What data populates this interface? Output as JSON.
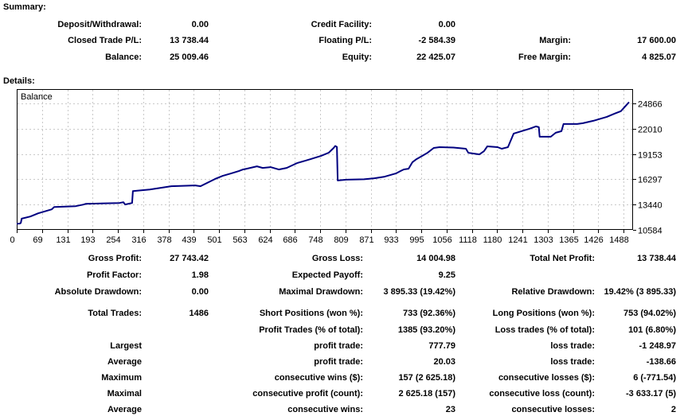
{
  "headings": {
    "summary": "Summary:",
    "details": "Details:"
  },
  "summary": {
    "rows": [
      [
        {
          "label": "Deposit/Withdrawal:",
          "value": "0.00"
        },
        {
          "label": "Credit Facility:",
          "value": "0.00"
        },
        null
      ],
      [
        {
          "label": "Closed Trade P/L:",
          "value": "13 738.44"
        },
        {
          "label": "Floating P/L:",
          "value": "-2 584.39"
        },
        {
          "label": "Margin:",
          "value": "17 600.00"
        }
      ],
      [
        {
          "label": "Balance:",
          "value": "25 009.46"
        },
        {
          "label": "Equity:",
          "value": "22 425.07"
        },
        {
          "label": "Free Margin:",
          "value": "4 825.07"
        }
      ]
    ]
  },
  "details": {
    "rows": [
      [
        {
          "label": "Gross Profit:",
          "value": "27 743.42"
        },
        {
          "label": "Gross Loss:",
          "value": "14 004.98"
        },
        {
          "label": "Total Net Profit:",
          "value": "13 738.44"
        }
      ],
      [
        {
          "label": "Profit Factor:",
          "value": "1.98"
        },
        {
          "label": "Expected Payoff:",
          "value": "9.25"
        },
        null
      ],
      [
        {
          "label": "Absolute Drawdown:",
          "value": "0.00"
        },
        {
          "label": "Maximal Drawdown:",
          "value": "3 895.33 (19.42%)"
        },
        {
          "label": "Relative Drawdown:",
          "value": "19.42% (3 895.33)"
        }
      ],
      [
        {
          "label": "Total Trades:",
          "value": "1486"
        },
        {
          "label": "Short Positions (won %):",
          "value": "733 (92.36%)"
        },
        {
          "label": "Long Positions (won %):",
          "value": "753 (94.02%)"
        }
      ],
      [
        null,
        {
          "label": "Profit Trades (% of total):",
          "value": "1385 (93.20%)"
        },
        {
          "label": "Loss trades (% of total):",
          "value": "101 (6.80%)"
        }
      ],
      [
        {
          "label": "Largest",
          "value": ""
        },
        {
          "label": "profit trade:",
          "value": "777.79"
        },
        {
          "label": "loss trade:",
          "value": "-1 248.97"
        }
      ],
      [
        {
          "label": "Average",
          "value": ""
        },
        {
          "label": "profit trade:",
          "value": "20.03"
        },
        {
          "label": "loss trade:",
          "value": "-138.66"
        }
      ],
      [
        {
          "label": "Maximum",
          "value": ""
        },
        {
          "label": "consecutive wins ($):",
          "value": "157 (2 625.18)"
        },
        {
          "label": "consecutive losses ($):",
          "value": "6 (-771.54)"
        }
      ],
      [
        {
          "label": "Maximal",
          "value": ""
        },
        {
          "label": "consecutive profit (count):",
          "value": "2 625.18 (157)"
        },
        {
          "label": "consecutive loss (count):",
          "value": "-3 633.17 (5)"
        }
      ],
      [
        {
          "label": "Average",
          "value": ""
        },
        {
          "label": "consecutive wins:",
          "value": "23"
        },
        {
          "label": "consecutive losses:",
          "value": "2"
        }
      ]
    ]
  },
  "chart_data": {
    "type": "line",
    "title": "Balance",
    "xlabel": "",
    "ylabel": "",
    "legend_position": "top-left",
    "grid": true,
    "line_color": "#000080",
    "grid_color": "#c9c9c9",
    "x_ticks": [
      0,
      69,
      131,
      193,
      254,
      316,
      378,
      439,
      501,
      563,
      624,
      686,
      748,
      809,
      871,
      933,
      995,
      1056,
      1118,
      1180,
      1241,
      1303,
      1365,
      1426,
      1488
    ],
    "y_ticks": [
      10584,
      13440,
      16297,
      19153,
      22010,
      24866
    ],
    "xlim": [
      0,
      1486
    ],
    "ylim": [
      10584,
      26480
    ],
    "series": [
      {
        "name": "Balance",
        "points": [
          [
            0,
            11271
          ],
          [
            8,
            11300
          ],
          [
            10,
            11380
          ],
          [
            12,
            11850
          ],
          [
            33,
            12090
          ],
          [
            52,
            12450
          ],
          [
            85,
            12900
          ],
          [
            91,
            13170
          ],
          [
            143,
            13260
          ],
          [
            162,
            13440
          ],
          [
            168,
            13530
          ],
          [
            249,
            13620
          ],
          [
            259,
            13710
          ],
          [
            263,
            13450
          ],
          [
            280,
            13620
          ],
          [
            282,
            14970
          ],
          [
            323,
            15150
          ],
          [
            375,
            15510
          ],
          [
            433,
            15600
          ],
          [
            446,
            15510
          ],
          [
            481,
            16320
          ],
          [
            500,
            16680
          ],
          [
            520,
            16950
          ],
          [
            539,
            17220
          ],
          [
            549,
            17400
          ],
          [
            558,
            17490
          ],
          [
            583,
            17760
          ],
          [
            597,
            17580
          ],
          [
            616,
            17670
          ],
          [
            636,
            17400
          ],
          [
            655,
            17580
          ],
          [
            680,
            18120
          ],
          [
            713,
            18570
          ],
          [
            738,
            18930
          ],
          [
            757,
            19290
          ],
          [
            769,
            19830
          ],
          [
            773,
            20060
          ],
          [
            777,
            19950
          ],
          [
            779,
            16160
          ],
          [
            800,
            16250
          ],
          [
            843,
            16300
          ],
          [
            868,
            16410
          ],
          [
            893,
            16590
          ],
          [
            920,
            16950
          ],
          [
            931,
            17220
          ],
          [
            939,
            17400
          ],
          [
            951,
            17490
          ],
          [
            960,
            18210
          ],
          [
            970,
            18570
          ],
          [
            997,
            19290
          ],
          [
            1012,
            19830
          ],
          [
            1026,
            19920
          ],
          [
            1060,
            19880
          ],
          [
            1090,
            19740
          ],
          [
            1096,
            19290
          ],
          [
            1123,
            19110
          ],
          [
            1134,
            19470
          ],
          [
            1142,
            20010
          ],
          [
            1167,
            19920
          ],
          [
            1177,
            19740
          ],
          [
            1192,
            19920
          ],
          [
            1206,
            21460
          ],
          [
            1225,
            21730
          ],
          [
            1244,
            22000
          ],
          [
            1260,
            22270
          ],
          [
            1267,
            22180
          ],
          [
            1269,
            21100
          ],
          [
            1296,
            21100
          ],
          [
            1308,
            21550
          ],
          [
            1322,
            21730
          ],
          [
            1327,
            22540
          ],
          [
            1360,
            22540
          ],
          [
            1374,
            22630
          ],
          [
            1399,
            22900
          ],
          [
            1432,
            23350
          ],
          [
            1451,
            23710
          ],
          [
            1466,
            23980
          ],
          [
            1478,
            24600
          ],
          [
            1486,
            25009
          ]
        ]
      }
    ]
  }
}
